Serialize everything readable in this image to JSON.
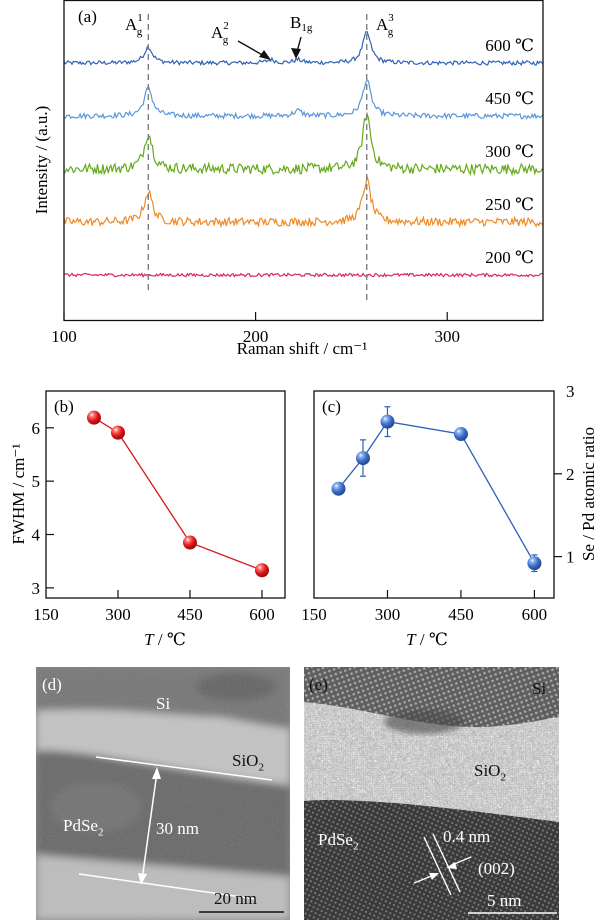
{
  "figure": {
    "panel_labels": [
      "(a)",
      "(b)",
      "(c)",
      "(d)",
      "(e)"
    ]
  },
  "chart_data": [
    {
      "id": "a",
      "type": "line",
      "panel_label": "(a)",
      "title": "",
      "xlabel": "Raman shift / cm⁻¹",
      "ylabel": "Intensity / (a.u.)",
      "xlim": [
        100,
        350
      ],
      "xticks": [
        100,
        200,
        300
      ],
      "yticks": [],
      "grid": false,
      "reference_lines": [
        {
          "x": 144,
          "style": "dashed",
          "color": "#808080"
        },
        {
          "x": 258,
          "style": "dashed",
          "color": "#808080"
        }
      ],
      "peak_annotations": [
        {
          "label": "A",
          "sub": "g",
          "sup": "1",
          "x": 144
        },
        {
          "label": "A",
          "sub": "g",
          "sup": "2",
          "x": 208,
          "arrow": true
        },
        {
          "label": "B",
          "sub": "1g",
          "sup": "",
          "x": 222,
          "arrow": true
        },
        {
          "label": "A",
          "sub": "g",
          "sup": "3",
          "x": 258
        }
      ],
      "series": [
        {
          "name": "600 ℃",
          "color": "#2f62b8",
          "offset": 4,
          "peaks": [
            {
              "x": 144,
              "h": 0.3
            },
            {
              "x": 208,
              "h": 0.06
            },
            {
              "x": 222,
              "h": 0.06
            },
            {
              "x": 258,
              "h": 0.57
            }
          ],
          "noise": 0.04
        },
        {
          "name": "450 ℃",
          "color": "#5a97dc",
          "offset": 3,
          "peaks": [
            {
              "x": 144,
              "h": 0.53
            },
            {
              "x": 222,
              "h": 0.1
            },
            {
              "x": 258,
              "h": 0.68
            }
          ],
          "noise": 0.05
        },
        {
          "name": "300 ℃",
          "color": "#64aa1a",
          "offset": 2,
          "peaks": [
            {
              "x": 144,
              "h": 0.68
            },
            {
              "x": 258,
              "h": 1.04
            }
          ],
          "noise": 0.1
        },
        {
          "name": "250 ℃",
          "color": "#f08a24",
          "offset": 1,
          "peaks": [
            {
              "x": 144,
              "h": 0.57
            },
            {
              "x": 258,
              "h": 0.79
            }
          ],
          "noise": 0.08
        },
        {
          "name": "200 ℃",
          "color": "#d6246e",
          "offset": 0,
          "peaks": [],
          "noise": 0.03
        }
      ]
    },
    {
      "id": "b",
      "type": "line",
      "panel_label": "(b)",
      "title": "",
      "xlabel_italic": "T",
      "xlabel_rest": " / ℃",
      "ylabel": "FWHM / cm⁻¹",
      "xlim": [
        150,
        648
      ],
      "ylim": [
        2.81,
        6.69
      ],
      "xticks": [
        150,
        300,
        450,
        600
      ],
      "yticks": [
        3,
        4,
        5,
        6
      ],
      "grid": false,
      "series": [
        {
          "name": "FWHM",
          "color": "#d9141b",
          "x": [
            250,
            300,
            450,
            600
          ],
          "y": [
            6.19,
            5.91,
            3.85,
            3.33
          ]
        }
      ]
    },
    {
      "id": "c",
      "type": "line",
      "panel_label": "(c)",
      "title": "",
      "xlabel_italic": "T",
      "xlabel_rest": " / ℃",
      "ylabel": "Se / Pd atomic ratio",
      "yaxis_side": "right",
      "xlim": [
        150,
        640
      ],
      "ylim": [
        0.5,
        3.0
      ],
      "xticks": [
        150,
        300,
        450,
        600
      ],
      "yticks": [
        1,
        2,
        3
      ],
      "grid": false,
      "series": [
        {
          "name": "Se/Pd",
          "color": "#2e5fb5",
          "x": [
            200,
            250,
            300,
            450,
            600
          ],
          "y": [
            1.82,
            2.19,
            2.63,
            2.48,
            0.92
          ],
          "err": [
            0.07,
            0.22,
            0.18,
            0.03,
            0.1
          ]
        }
      ]
    }
  ],
  "tem_d": {
    "panel_label": "(d)",
    "layers": {
      "si": "Si",
      "sio2_main": "SiO",
      "sio2_sub": "2",
      "pdse2_main": "PdSe",
      "pdse2_sub": "2"
    },
    "thickness": "30 nm",
    "scale_bar": "20 nm"
  },
  "tem_e": {
    "panel_label": "(e)",
    "layers": {
      "si": "Si",
      "sio2_main": "SiO",
      "sio2_sub": "2",
      "pdse2_main": "PdSe",
      "pdse2_sub": "2"
    },
    "spacing": "0.4 nm",
    "plane": "(002)",
    "scale_bar": "5 nm"
  }
}
